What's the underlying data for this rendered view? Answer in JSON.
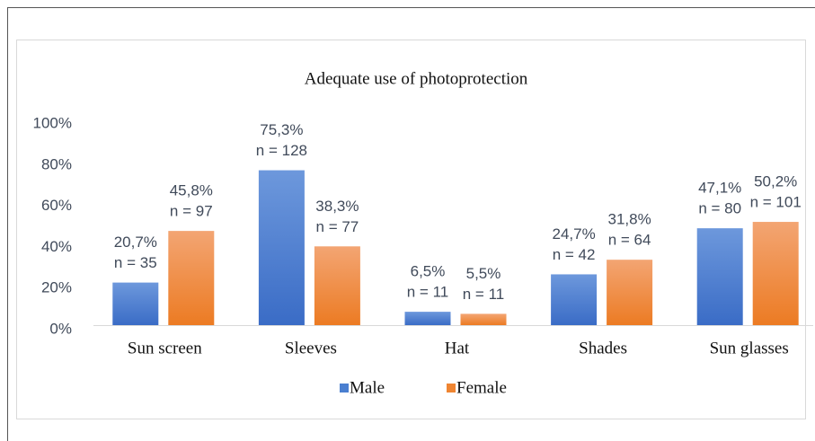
{
  "chart_data": {
    "type": "bar",
    "title": "Adequate use of photoprotection",
    "categories": [
      "Sun screen",
      "Sleeves",
      "Hat",
      "Shades",
      "Sun glasses"
    ],
    "series": [
      {
        "name": "Male",
        "color": "#4a7fd0",
        "values": [
          20.7,
          75.3,
          6.5,
          24.7,
          47.1
        ],
        "value_labels": [
          "20,7%",
          "75,3%",
          "6,5%",
          "24,7%",
          "47,1%"
        ],
        "count_labels": [
          "n = 35",
          "n = 128",
          "n = 11",
          "n = 42",
          "n = 80"
        ]
      },
      {
        "name": "Female",
        "color": "#ef8532",
        "values": [
          45.8,
          38.3,
          5.5,
          31.8,
          50.2
        ],
        "value_labels": [
          "45,8%",
          "38,3%",
          "5,5%",
          "31,8%",
          "50,2%"
        ],
        "count_labels": [
          "n = 97",
          "n = 77",
          "n = 11",
          "n = 64",
          "n = 101"
        ]
      }
    ],
    "ylim": [
      0,
      100
    ],
    "yticks": [
      {
        "value": 0,
        "label": "0%"
      },
      {
        "value": 20,
        "label": "20%"
      },
      {
        "value": 40,
        "label": "40%"
      },
      {
        "value": 60,
        "label": "60%"
      },
      {
        "value": 80,
        "label": "80%"
      },
      {
        "value": 100,
        "label": "100%"
      }
    ],
    "grid": false,
    "legend": "bottom"
  }
}
